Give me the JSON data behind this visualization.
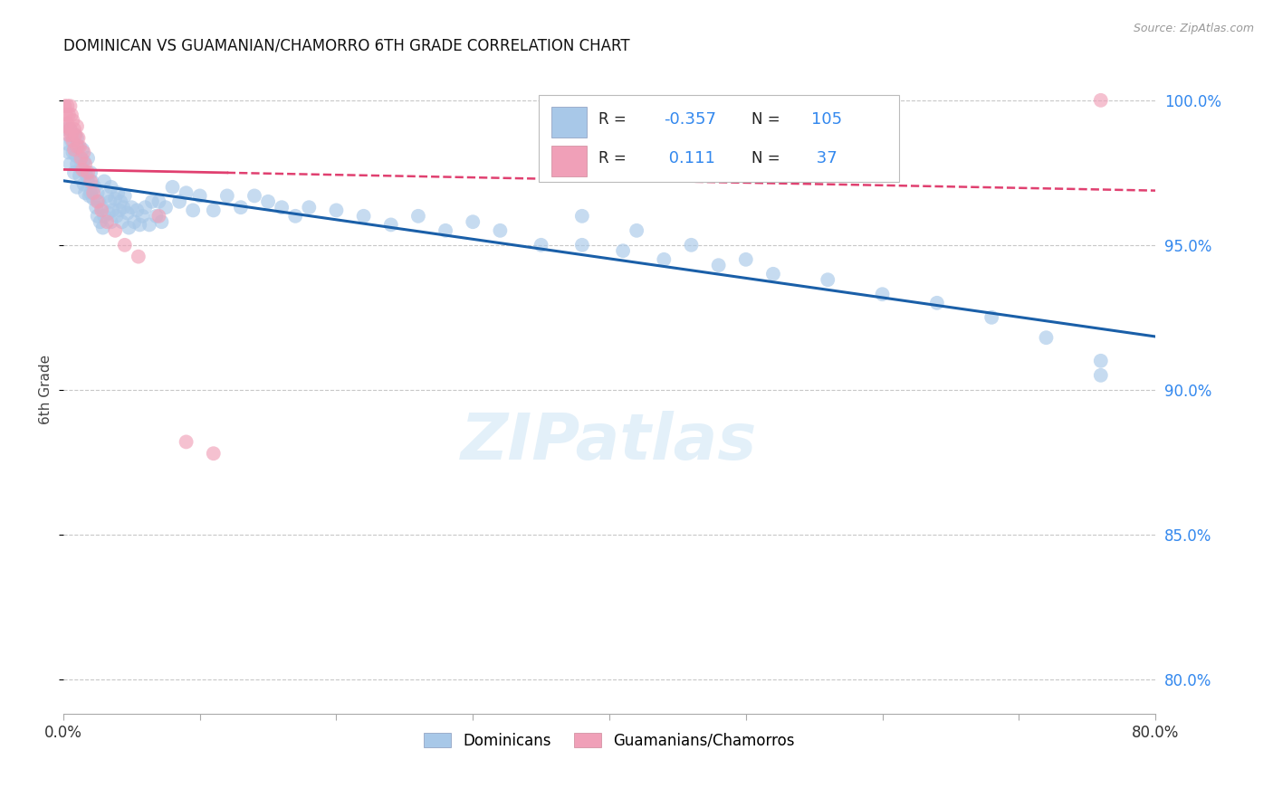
{
  "title": "DOMINICAN VS GUAMANIAN/CHAMORRO 6TH GRADE CORRELATION CHART",
  "source": "Source: ZipAtlas.com",
  "ylabel": "6th Grade",
  "ylabel_right_labels": [
    "100.0%",
    "95.0%",
    "90.0%",
    "85.0%",
    "80.0%"
  ],
  "ylabel_right_values": [
    1.0,
    0.95,
    0.9,
    0.85,
    0.8
  ],
  "xlim": [
    0.0,
    0.8
  ],
  "ylim": [
    0.788,
    1.012
  ],
  "blue_R": "-0.357",
  "blue_N": "105",
  "pink_R": "0.111",
  "pink_N": "37",
  "blue_color": "#a8c8e8",
  "pink_color": "#f0a0b8",
  "blue_line_color": "#1a5fa8",
  "pink_line_color": "#e04070",
  "legend_label_blue": "Dominicans",
  "legend_label_pink": "Guamanians/Chamorros",
  "watermark": "ZIPatlas",
  "grid_color": "#c8c8c8",
  "blue_scatter_x": [
    0.002,
    0.003,
    0.004,
    0.005,
    0.005,
    0.006,
    0.007,
    0.008,
    0.008,
    0.009,
    0.01,
    0.01,
    0.01,
    0.011,
    0.012,
    0.012,
    0.013,
    0.014,
    0.015,
    0.015,
    0.016,
    0.016,
    0.017,
    0.018,
    0.018,
    0.019,
    0.02,
    0.02,
    0.021,
    0.022,
    0.023,
    0.024,
    0.025,
    0.025,
    0.026,
    0.027,
    0.028,
    0.029,
    0.03,
    0.03,
    0.032,
    0.033,
    0.034,
    0.035,
    0.035,
    0.036,
    0.038,
    0.039,
    0.04,
    0.041,
    0.042,
    0.043,
    0.044,
    0.045,
    0.047,
    0.048,
    0.05,
    0.052,
    0.054,
    0.056,
    0.058,
    0.06,
    0.063,
    0.065,
    0.068,
    0.07,
    0.072,
    0.075,
    0.08,
    0.085,
    0.09,
    0.095,
    0.1,
    0.11,
    0.12,
    0.13,
    0.14,
    0.15,
    0.16,
    0.17,
    0.18,
    0.2,
    0.22,
    0.24,
    0.26,
    0.28,
    0.3,
    0.32,
    0.35,
    0.38,
    0.41,
    0.44,
    0.48,
    0.52,
    0.56,
    0.6,
    0.64,
    0.68,
    0.72,
    0.76,
    0.76,
    0.38,
    0.42,
    0.46,
    0.5
  ],
  "blue_scatter_y": [
    0.99,
    0.985,
    0.982,
    0.99,
    0.978,
    0.986,
    0.982,
    0.988,
    0.975,
    0.981,
    0.987,
    0.978,
    0.97,
    0.984,
    0.98,
    0.974,
    0.977,
    0.983,
    0.979,
    0.971,
    0.975,
    0.968,
    0.974,
    0.98,
    0.972,
    0.967,
    0.975,
    0.968,
    0.972,
    0.966,
    0.97,
    0.963,
    0.968,
    0.96,
    0.965,
    0.958,
    0.963,
    0.956,
    0.972,
    0.96,
    0.967,
    0.961,
    0.965,
    0.97,
    0.958,
    0.962,
    0.966,
    0.96,
    0.968,
    0.962,
    0.965,
    0.958,
    0.963,
    0.967,
    0.961,
    0.956,
    0.963,
    0.958,
    0.962,
    0.957,
    0.96,
    0.963,
    0.957,
    0.965,
    0.96,
    0.965,
    0.958,
    0.963,
    0.97,
    0.965,
    0.968,
    0.962,
    0.967,
    0.962,
    0.967,
    0.963,
    0.967,
    0.965,
    0.963,
    0.96,
    0.963,
    0.962,
    0.96,
    0.957,
    0.96,
    0.955,
    0.958,
    0.955,
    0.95,
    0.95,
    0.948,
    0.945,
    0.943,
    0.94,
    0.938,
    0.933,
    0.93,
    0.925,
    0.918,
    0.91,
    0.905,
    0.96,
    0.955,
    0.95,
    0.945
  ],
  "pink_scatter_x": [
    0.001,
    0.002,
    0.002,
    0.003,
    0.003,
    0.004,
    0.004,
    0.005,
    0.005,
    0.006,
    0.006,
    0.007,
    0.007,
    0.008,
    0.008,
    0.009,
    0.01,
    0.01,
    0.011,
    0.012,
    0.013,
    0.014,
    0.015,
    0.016,
    0.018,
    0.02,
    0.022,
    0.025,
    0.028,
    0.032,
    0.038,
    0.045,
    0.055,
    0.07,
    0.09,
    0.11,
    0.76
  ],
  "pink_scatter_y": [
    0.998,
    0.995,
    0.991,
    0.998,
    0.992,
    0.995,
    0.988,
    0.998,
    0.99,
    0.995,
    0.988,
    0.993,
    0.986,
    0.99,
    0.983,
    0.988,
    0.991,
    0.984,
    0.987,
    0.984,
    0.98,
    0.976,
    0.982,
    0.978,
    0.975,
    0.972,
    0.968,
    0.965,
    0.962,
    0.958,
    0.955,
    0.95,
    0.946,
    0.96,
    0.882,
    0.878,
    1.0
  ]
}
